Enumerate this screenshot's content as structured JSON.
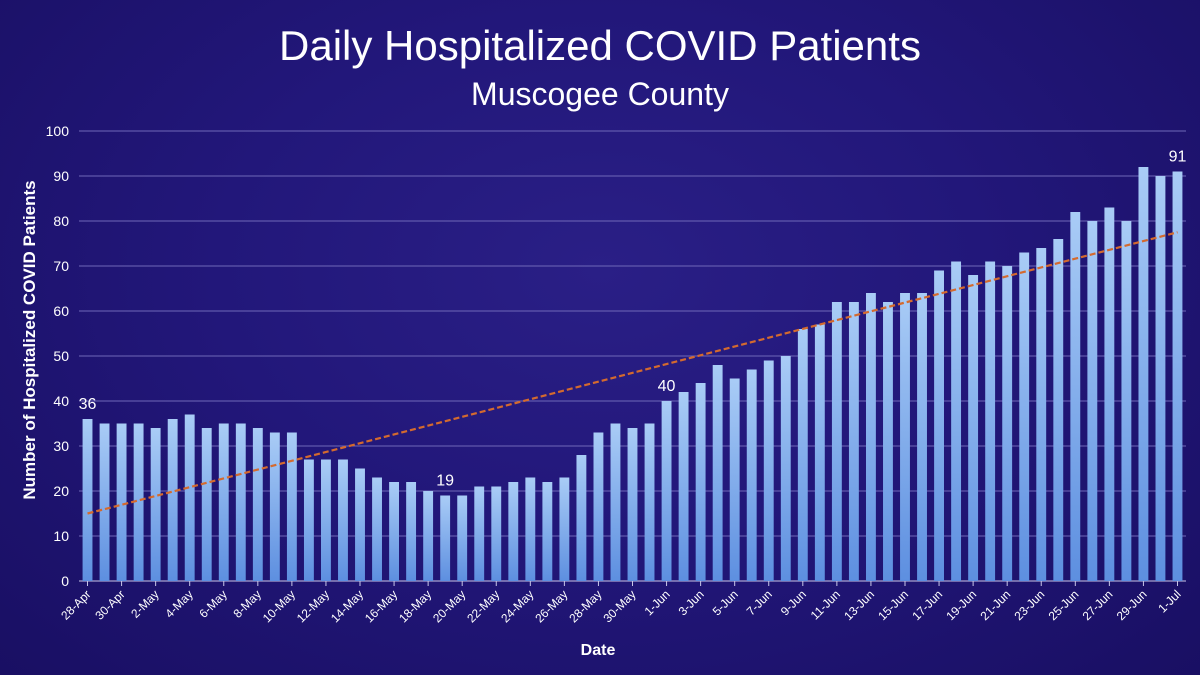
{
  "chart_data": {
    "type": "bar",
    "title": "Daily Hospitalized COVID Patients",
    "subtitle": "Muscogee County",
    "xlabel": "Date",
    "ylabel": "Number of Hospitalized COVID Patients",
    "ylim": [
      0,
      100
    ],
    "yticks": [
      0,
      10,
      20,
      30,
      40,
      50,
      60,
      70,
      80,
      90,
      100
    ],
    "grid": true,
    "categories": [
      "28-Apr",
      "29-Apr",
      "30-Apr",
      "1-May",
      "2-May",
      "3-May",
      "4-May",
      "5-May",
      "6-May",
      "7-May",
      "8-May",
      "9-May",
      "10-May",
      "11-May",
      "12-May",
      "13-May",
      "14-May",
      "15-May",
      "16-May",
      "17-May",
      "18-May",
      "19-May",
      "20-May",
      "21-May",
      "22-May",
      "23-May",
      "24-May",
      "25-May",
      "26-May",
      "27-May",
      "28-May",
      "29-May",
      "30-May",
      "31-May",
      "1-Jun",
      "2-Jun",
      "3-Jun",
      "4-Jun",
      "5-Jun",
      "6-Jun",
      "7-Jun",
      "8-Jun",
      "9-Jun",
      "10-Jun",
      "11-Jun",
      "12-Jun",
      "13-Jun",
      "14-Jun",
      "15-Jun",
      "16-Jun",
      "17-Jun",
      "18-Jun",
      "19-Jun",
      "20-Jun",
      "21-Jun",
      "22-Jun",
      "23-Jun",
      "24-Jun",
      "25-Jun",
      "26-Jun",
      "27-Jun",
      "28-Jun",
      "29-Jun",
      "30-Jun",
      "1-Jul"
    ],
    "xtick_labels": [
      "28-Apr",
      "30-Apr",
      "2-May",
      "4-May",
      "6-May",
      "8-May",
      "10-May",
      "12-May",
      "14-May",
      "16-May",
      "18-May",
      "20-May",
      "22-May",
      "24-May",
      "26-May",
      "28-May",
      "30-May",
      "1-Jun",
      "3-Jun",
      "5-Jun",
      "7-Jun",
      "9-Jun",
      "11-Jun",
      "13-Jun",
      "15-Jun",
      "17-Jun",
      "19-Jun",
      "21-Jun",
      "23-Jun",
      "25-Jun",
      "27-Jun",
      "29-Jun",
      "1-Jul"
    ],
    "series": [
      {
        "values": [
          36,
          35,
          35,
          35,
          34,
          36,
          37,
          34,
          35,
          35,
          34,
          33,
          33,
          27,
          27,
          27,
          25,
          23,
          22,
          22,
          20,
          19,
          19,
          21,
          21,
          22,
          23,
          22,
          23,
          28,
          33,
          35,
          34,
          35,
          40,
          42,
          44,
          48,
          45,
          47,
          49,
          50,
          56,
          57,
          62,
          62,
          64,
          62,
          64,
          64,
          69,
          71,
          68,
          71,
          70,
          73,
          74,
          76,
          82,
          80,
          83,
          80,
          92,
          90,
          91
        ],
        "color": "#8fb9f0"
      }
    ],
    "trendline": {
      "type": "linear",
      "start": 15,
      "end": 77.5,
      "color": "#d46a2e"
    },
    "annotations": [
      {
        "category": "28-Apr",
        "text": "36"
      },
      {
        "category": "19-May",
        "text": "19"
      },
      {
        "category": "1-Jun",
        "text": "40"
      },
      {
        "category": "1-Jul",
        "text": "91"
      }
    ]
  }
}
